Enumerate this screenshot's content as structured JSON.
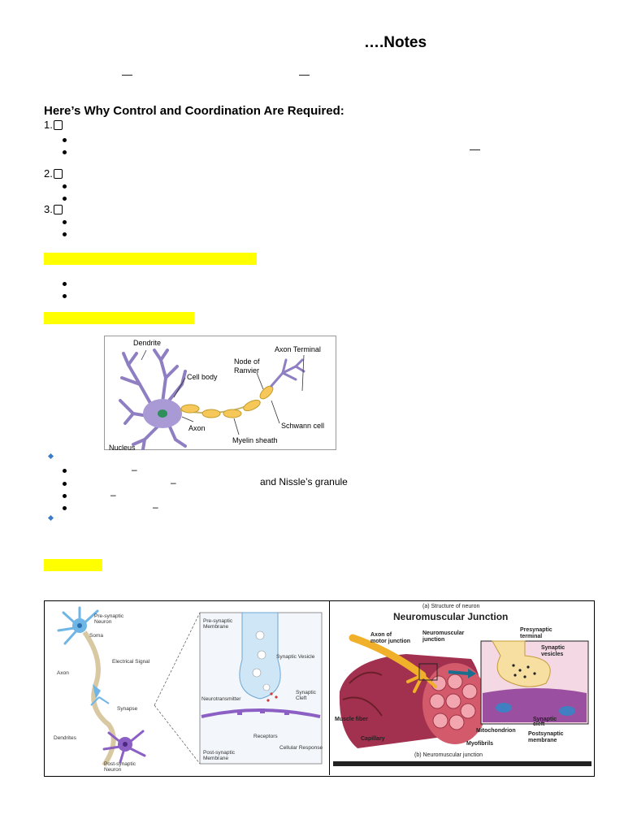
{
  "page": {
    "title": "….Notes",
    "intro_dashes": [
      "—",
      "—"
    ],
    "heading": "Here’s Why Control and Coordination Are Required:",
    "numbered": [
      "1.",
      "2.",
      "3."
    ],
    "dash_right": "—"
  },
  "neuron_parts": {
    "dash_1": "–",
    "dash_2": "–",
    "granule_text": "and Nissle’s granule",
    "dash_3": "–",
    "dash_4": "–"
  },
  "figure_neuron": {
    "labels": {
      "dendrite": "Dendrite",
      "axon_terminal": "Axon Terminal",
      "node_of_ranvier_1": "Node of",
      "node_of_ranvier_2": "Ranvier",
      "cell_body": "Cell body",
      "axon": "Axon",
      "schwann_cell": "Schwann cell",
      "myelin_sheath": "Myelin sheath",
      "nucleus": "Nucleus"
    }
  },
  "figure_synapse": {
    "labels": {
      "pre_neuron_1": "Pre-synaptic",
      "pre_neuron_2": "Neuron",
      "soma": "Soma",
      "electrical_signal": "Electrical Signal",
      "axon": "Axon",
      "synapse": "Synapse",
      "dendrites": "Dendrites",
      "post_neuron_1": "Post-synaptic",
      "post_neuron_2": "Neuron",
      "pre_membrane_1": "Pre-synaptic",
      "pre_membrane_2": "Membrane",
      "synaptic_vesicle": "Synaptic Vesicle",
      "neurotransmitter": "Neurotransmitter",
      "synaptic_cleft_1": "Synaptic",
      "synaptic_cleft_2": "Cleft",
      "receptors": "Receptors",
      "cellular_response": "Cellular Response",
      "post_membrane_1": "Post-synaptic",
      "post_membrane_2": "Membrane"
    }
  },
  "figure_nmj": {
    "labels": {
      "caption_a": "(a) Structure of neuron",
      "title": "Neuromuscular Junction",
      "axon_1": "Axon of",
      "axon_2": "motor junction",
      "nmj_1": "Neuromuscular",
      "nmj_2": "junction",
      "presyn_1": "Presynaptic",
      "presyn_2": "terminal",
      "vesicles_1": "Synaptic",
      "vesicles_2": "vesicles",
      "muscle_fiber": "Muscle fiber",
      "capillary": "Capillary",
      "mitochondrion": "Mitochondrion",
      "myofibrils": "Myofibrils",
      "cleft_1": "Synaptic",
      "cleft_2": "cleft",
      "postsyn_1": "Postsynaptic",
      "postsyn_2": "membrane",
      "caption_b": "(b) Neuromuscular junction"
    }
  }
}
